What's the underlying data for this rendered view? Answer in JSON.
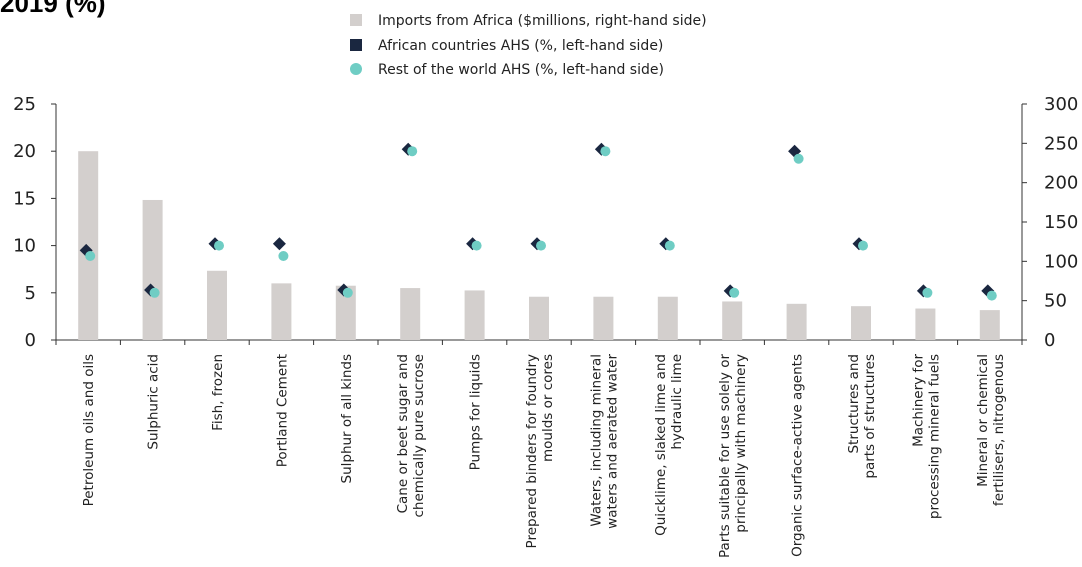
{
  "title": "2019 (%)",
  "chart_data": {
    "type": "bar",
    "categories": [
      [
        "Petroleum oils and oils"
      ],
      [
        "Sulphuric acid"
      ],
      [
        "Fish, frozen"
      ],
      [
        "Portland Cement"
      ],
      [
        "Sulphur of all kinds"
      ],
      [
        "Cane or beet sugar and",
        "chemically pure sucrose"
      ],
      [
        "Pumps for liquids"
      ],
      [
        "Prepared binders for foundry",
        "moulds or cores"
      ],
      [
        "Waters, including mineral",
        "waters and aerated water"
      ],
      [
        "Quicklime, slaked lime and",
        "hydraulic lime"
      ],
      [
        "Parts suitable for use solely or",
        "principally with machinery"
      ],
      [
        "Organic surface-active agents"
      ],
      [
        "Structures and",
        "parts of structures"
      ],
      [
        "Machinery for",
        "processing mineral fuels"
      ],
      [
        "Mineral or chemical",
        "fertilisers, nitrogenous"
      ]
    ],
    "series": [
      {
        "name": "Imports from Africa ($millions, right-hand side)",
        "type": "bar",
        "axis": "right",
        "color": "#d3cfcd",
        "values": [
          240,
          178,
          88,
          72,
          69,
          66,
          63,
          55,
          55,
          55,
          49,
          46,
          43,
          40,
          38
        ]
      },
      {
        "name": "African countries AHS (%, left-hand side)",
        "type": "scatter",
        "marker": "diamond",
        "axis": "left",
        "color": "#1a2740",
        "values": [
          9.5,
          5.3,
          10.2,
          10.2,
          5.3,
          20.2,
          10.2,
          10.2,
          20.2,
          10.2,
          5.2,
          20.0,
          10.2,
          5.2,
          5.2
        ]
      },
      {
        "name": "Rest of the world AHS (%, left-hand side)",
        "type": "scatter",
        "marker": "circle",
        "axis": "left",
        "color": "#6fcdc4",
        "values": [
          8.9,
          5.0,
          10.0,
          8.9,
          5.0,
          20.0,
          10.0,
          10.0,
          20.0,
          10.0,
          5.0,
          19.2,
          10.0,
          5.0,
          4.7
        ]
      }
    ],
    "left_axis": {
      "min": 0,
      "max": 25,
      "ticks": [
        "0",
        "5",
        "10",
        "15",
        "20",
        "25"
      ]
    },
    "right_axis": {
      "min": 0,
      "max": 300,
      "ticks": [
        "0",
        "50",
        "100",
        "150",
        "200",
        "250",
        "300"
      ]
    },
    "grid": false,
    "legend_position": "top-center"
  }
}
